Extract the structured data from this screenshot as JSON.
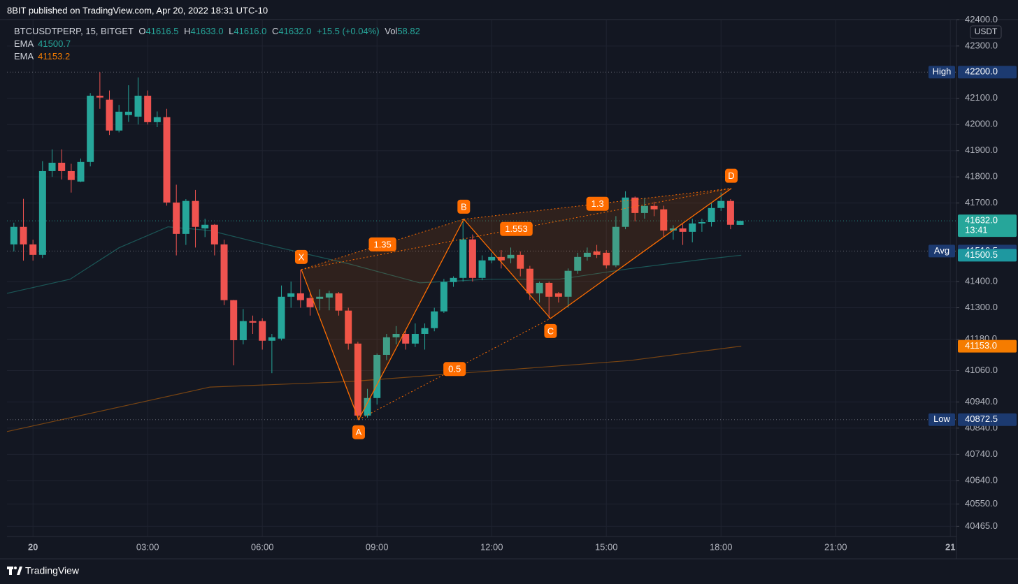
{
  "header": {
    "published": "8BIT published on TradingView.com, Apr 20, 2022 18:31 UTC-10",
    "brand": "TradingView"
  },
  "chart_data": {
    "type": "candlestick",
    "symbol": "BTCUSDTPERP, 15, BITGET",
    "ohlc": [
      {
        "key": "O",
        "value": "41616.5"
      },
      {
        "key": "H",
        "value": "41633.0"
      },
      {
        "key": "L",
        "value": "41616.0"
      },
      {
        "key": "C",
        "value": "41632.0"
      }
    ],
    "change": "+15.5 (+0.04%)",
    "volume": {
      "key": "Vol",
      "value": "58.82"
    },
    "currency": "USDT",
    "up_color": "#26a69a",
    "down_color": "#ef5350",
    "x": [
      -0.5,
      -0.25,
      0,
      0.25,
      0.5,
      0.75,
      1,
      1.25,
      1.5,
      1.75,
      2,
      2.25,
      2.5,
      2.75,
      3,
      3.25,
      3.5,
      3.75,
      4,
      4.25,
      4.5,
      4.75,
      5,
      5.25,
      5.5,
      5.75,
      6,
      6.25,
      6.5,
      6.75,
      7,
      7.25,
      7.5,
      7.75,
      8,
      8.25,
      8.5,
      8.75,
      9,
      9.25,
      9.5,
      9.75,
      10,
      10.25,
      10.5,
      10.75,
      11,
      11.25,
      11.5,
      11.75,
      12,
      12.25,
      12.5,
      12.75,
      13,
      13.25,
      13.5,
      13.75,
      14,
      14.25,
      14.5,
      14.75,
      15,
      15.25,
      15.5,
      15.75,
      16,
      16.25,
      16.5,
      16.75,
      17,
      17.25,
      17.5,
      17.75,
      18,
      18.25,
      18.5
    ],
    "open": [
      41542,
      41609,
      41542,
      41502,
      41822,
      41854,
      41822,
      41782,
      41857,
      42110,
      42095,
      41977,
      42036,
      42030,
      42110,
      42009,
      42028,
      41702,
      41582,
      41708,
      41603,
      41617,
      41542,
      41329,
      41176,
      41249,
      41249,
      41174,
      41182,
      41342,
      41355,
      41337,
      41334,
      41339,
      41355,
      41289,
      41163,
      40888,
      40955,
      41120,
      41187,
      41200,
      41163,
      41200,
      41222,
      41286,
      41398,
      41414,
      41561,
      41414,
      41481,
      41494,
      41489,
      41502,
      41449,
      41355,
      41395,
      41355,
      41342,
      41441,
      41494,
      41515,
      41510,
      41462,
      41609,
      41721,
      41662,
      41689,
      41676,
      41595,
      41603,
      41590,
      41622,
      41627,
      41681,
      41708,
      41616.5
    ],
    "high": [
      41625,
      41716,
      41560,
      41860,
      41905,
      41905,
      41850,
      41870,
      42120,
      42200,
      42130,
      42075,
      42150,
      42180,
      42130,
      42050,
      42060,
      41770,
      41715,
      41750,
      41640,
      41620,
      41560,
      41330,
      41295,
      41270,
      41260,
      41200,
      41385,
      41400,
      41445,
      41360,
      41370,
      41365,
      41360,
      41300,
      41170,
      40990,
      41125,
      41200,
      41230,
      41215,
      41240,
      41240,
      41300,
      41410,
      41420,
      41640,
      41580,
      41500,
      41510,
      41520,
      41530,
      41515,
      41460,
      41400,
      41400,
      41360,
      41450,
      41510,
      41530,
      41540,
      41520,
      41650,
      41745,
      41725,
      41720,
      41705,
      41690,
      41615,
      41620,
      41640,
      41640,
      41700,
      41740,
      41715,
      41633
    ],
    "low": [
      41515,
      41480,
      41480,
      41490,
      41800,
      41790,
      41740,
      41780,
      41840,
      42060,
      41960,
      41970,
      42010,
      42000,
      42000,
      41990,
      41690,
      41500,
      41540,
      41530,
      41570,
      41500,
      41310,
      41080,
      41160,
      41200,
      41140,
      41050,
      41175,
      41300,
      41300,
      41270,
      41290,
      41290,
      41270,
      41140,
      40872.5,
      40880,
      40930,
      41100,
      41160,
      41140,
      41150,
      41140,
      41210,
      41280,
      41380,
      41400,
      41400,
      41405,
      41470,
      41450,
      41470,
      41420,
      41330,
      41320,
      41259,
      41320,
      41300,
      41430,
      41480,
      41490,
      41450,
      41455,
      41600,
      41630,
      41640,
      41650,
      41570,
      41560,
      41540,
      41550,
      41590,
      41610,
      41670,
      41600,
      41616
    ],
    "close": [
      41609,
      41542,
      41502,
      41822,
      41854,
      41822,
      41788,
      41857,
      42110,
      42103,
      41977,
      42049,
      42049,
      42110,
      42009,
      42028,
      41702,
      41582,
      41708,
      41609,
      41617,
      41542,
      41329,
      41176,
      41249,
      41243,
      41174,
      41187,
      41342,
      41355,
      41329,
      41302,
      41342,
      41355,
      41289,
      41163,
      40888,
      40955,
      41120,
      41187,
      41200,
      41163,
      41200,
      41222,
      41286,
      41398,
      41414,
      41561,
      41414,
      41481,
      41494,
      41481,
      41502,
      41449,
      41355,
      41395,
      41342,
      41342,
      41441,
      41494,
      41510,
      41502,
      41462,
      41609,
      41721,
      41662,
      41689,
      41676,
      41595,
      41603,
      41590,
      41622,
      41627,
      41681,
      41708,
      41617,
      41632
    ],
    "xlim": [
      -0.68,
      24.16
    ],
    "xticks": [
      {
        "value": 0,
        "label": "20"
      },
      {
        "value": 3,
        "label": "03:00"
      },
      {
        "value": 6,
        "label": "06:00"
      },
      {
        "value": 9,
        "label": "09:00"
      },
      {
        "value": 12,
        "label": "12:00"
      },
      {
        "value": 15,
        "label": "15:00"
      },
      {
        "value": 18,
        "label": "18:00"
      },
      {
        "value": 21,
        "label": "21:00"
      },
      {
        "value": 24,
        "label": "21"
      }
    ],
    "ylim": [
      40426,
      42417
    ],
    "yticks": [
      {
        "value": 42400,
        "label": "42400.0"
      },
      {
        "value": 42300,
        "label": "42300.0"
      },
      {
        "value": 42100,
        "label": "42100.0"
      },
      {
        "value": 42000,
        "label": "42000.0"
      },
      {
        "value": 41900,
        "label": "41900.0"
      },
      {
        "value": 41800,
        "label": "41800.0"
      },
      {
        "value": 41700,
        "label": "41700.0"
      },
      {
        "value": 41400,
        "label": "41400.0"
      },
      {
        "value": 41300,
        "label": "41300.0"
      },
      {
        "value": 41180,
        "label": "41180.0"
      },
      {
        "value": 41060,
        "label": "41060.0"
      },
      {
        "value": 40940,
        "label": "40940.0"
      },
      {
        "value": 40840,
        "label": "40840.0"
      },
      {
        "value": 40740,
        "label": "40740.0"
      },
      {
        "value": 40640,
        "label": "40640.0"
      },
      {
        "value": 40550,
        "label": "40550.0"
      },
      {
        "value": 40465,
        "label": "40465.0"
      }
    ],
    "grid": true,
    "indicators": [
      {
        "name": "EMA",
        "value_label": "41500.7",
        "color": "#26a69a",
        "axis_value": 41500.5,
        "axis_label": "41500.5",
        "x": [
          -0.68,
          0.97,
          2.25,
          3.53,
          4.63,
          6.09,
          8.29,
          10.12,
          11.94,
          13.77,
          15.6,
          17.43,
          18.53
        ],
        "values": [
          41355,
          41409,
          41529,
          41609,
          41595,
          41542,
          41467,
          41395,
          41409,
          41409,
          41449,
          41483,
          41500.7
        ]
      },
      {
        "name": "EMA",
        "value_label": "41153.2",
        "color": "#f57c00",
        "axis_value": 41153,
        "axis_label": "41153.0",
        "x": [
          -0.68,
          2.8,
          4.63,
          8.29,
          11.94,
          15.6,
          18.53
        ],
        "values": [
          40827,
          40938,
          40997,
          41018,
          41058,
          41098,
          41153.2
        ]
      }
    ],
    "price_lines": [
      {
        "name": "High",
        "value": 42200,
        "label": "42200.0",
        "color": "#1c3a70"
      },
      {
        "value": 41632,
        "label": "41632.0",
        "countdown": "13:41",
        "color": "#26a69a"
      },
      {
        "name": "Avg",
        "value": 41516.5,
        "label": "41516.5",
        "color": "#1c3a70"
      },
      {
        "name": "Low",
        "value": 40872.5,
        "label": "40872.5",
        "color": "#1c3a70"
      }
    ],
    "pattern": {
      "color": "#ff6d00",
      "points": [
        {
          "label": "X",
          "x": 7.02,
          "y": 41446
        },
        {
          "label": "A",
          "x": 8.52,
          "y": 40872.5
        },
        {
          "label": "B",
          "x": 11.27,
          "y": 41638
        },
        {
          "label": "C",
          "x": 13.54,
          "y": 41259
        },
        {
          "label": "D",
          "x": 18.27,
          "y": 41756
        }
      ],
      "ratios": [
        1.35,
        0.5,
        1.3,
        1.553
      ]
    }
  }
}
